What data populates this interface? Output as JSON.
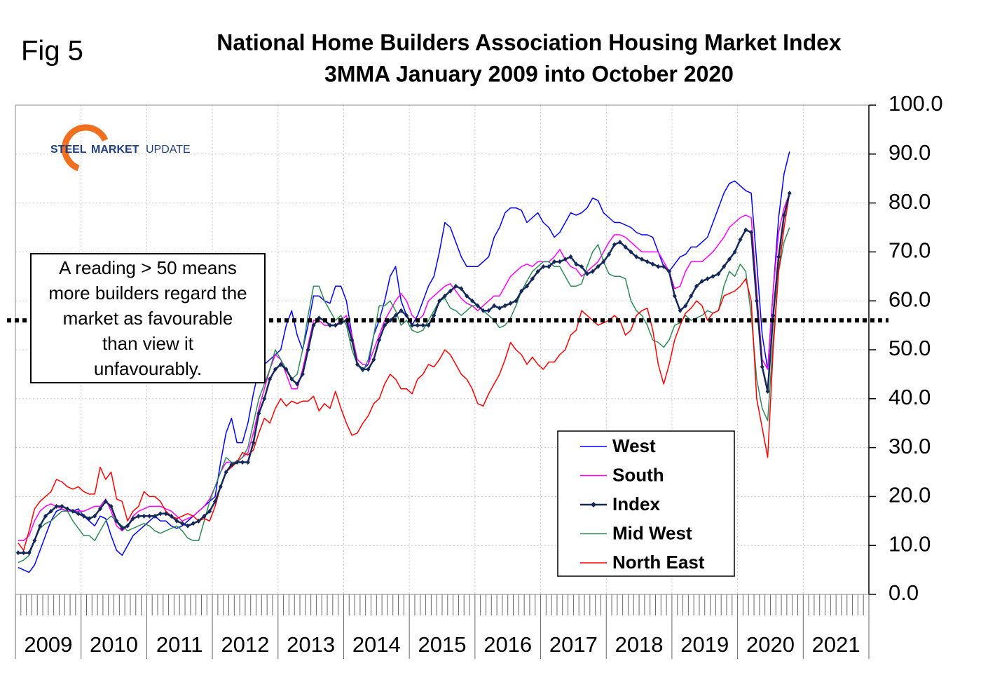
{
  "chart_data": {
    "type": "line",
    "figure_label": "Fig 5",
    "title": [
      "National Home Builders Association Housing Market Index",
      "3MMA January 2009 into October 2020"
    ],
    "logo": [
      "STEEL",
      "MARKET",
      "UPDATE"
    ],
    "annotation": [
      "A reading > 50 means",
      "more builders regard the",
      "market as favourable",
      "than view it",
      "unfavourably."
    ],
    "reference_line": 56,
    "x_year_labels": [
      "2009",
      "2010",
      "2011",
      "2012",
      "2013",
      "2014",
      "2015",
      "2016",
      "2017",
      "2018",
      "2019",
      "2020",
      "2021"
    ],
    "ylim": [
      0,
      100
    ],
    "yticks": [
      {
        "value": 0,
        "label": "0.0"
      },
      {
        "value": 10,
        "label": "10.0"
      },
      {
        "value": 20,
        "label": "20.0"
      },
      {
        "value": 30,
        "label": "30.0"
      },
      {
        "value": 40,
        "label": "40.0"
      },
      {
        "value": 50,
        "label": "50.0"
      },
      {
        "value": 60,
        "label": "60.0"
      },
      {
        "value": 70,
        "label": "70.0"
      },
      {
        "value": 80,
        "label": "80.0"
      },
      {
        "value": 90,
        "label": "90.0"
      },
      {
        "value": 100,
        "label": "100.0"
      }
    ],
    "grid": true,
    "legend": "bottom-right",
    "series": [
      {
        "name": "West",
        "color": "#0000ff",
        "markers": false,
        "values": [
          5.5,
          5,
          4.5,
          6,
          9,
          12,
          15,
          17,
          17.5,
          17,
          17,
          17.5,
          16,
          15,
          14,
          16,
          15.5,
          12,
          9,
          8,
          10,
          12,
          13,
          14,
          15,
          16,
          15,
          15,
          14,
          13.5,
          14,
          15,
          16,
          17,
          18,
          19,
          20,
          27,
          33,
          36,
          31,
          31,
          35,
          41,
          46,
          47,
          48,
          49,
          50,
          55,
          58,
          53,
          50,
          55,
          61,
          61,
          60,
          59.5,
          63,
          63,
          60,
          53,
          47,
          46,
          47,
          53,
          56,
          60,
          65,
          67,
          60,
          57,
          55,
          57,
          60,
          63,
          65,
          70,
          76,
          75,
          72,
          69,
          67,
          67,
          67,
          68,
          69,
          73,
          75,
          78,
          79,
          79,
          78.5,
          76,
          77,
          78,
          76,
          75,
          73,
          74,
          76,
          78,
          77.5,
          78,
          79,
          81,
          80.5,
          78,
          77,
          76,
          76,
          75.5,
          75,
          74,
          73.5,
          73.5,
          73,
          70,
          67,
          66,
          67.5,
          69,
          69.5,
          71,
          71,
          72,
          73,
          76,
          79,
          82,
          84,
          84.5,
          83.5,
          82.5,
          82,
          68,
          53,
          46,
          62,
          77,
          86,
          90.5
        ]
      },
      {
        "name": "South",
        "color": "#ff00ff",
        "markers": false,
        "values": [
          11,
          11,
          12,
          15,
          17,
          18,
          18.5,
          18,
          17.5,
          17,
          17,
          17,
          17,
          17.5,
          18,
          18,
          19.5,
          17,
          14,
          13,
          14,
          16,
          17,
          17.5,
          18,
          18,
          18,
          17.5,
          17,
          16,
          15,
          15.5,
          16,
          17,
          18,
          19.5,
          22,
          25,
          27,
          27,
          27,
          28,
          29,
          33,
          38,
          42,
          46,
          49,
          48,
          45,
          42,
          42,
          46,
          51,
          56,
          56,
          55,
          55,
          55,
          56,
          57,
          53,
          48,
          47,
          47,
          50,
          53,
          56,
          58,
          60,
          61.5,
          60,
          57,
          56,
          57,
          60,
          61,
          62,
          63,
          63.5,
          62,
          60.5,
          59.5,
          59,
          58,
          59,
          60,
          61,
          61,
          63,
          65,
          66,
          67,
          67.5,
          67,
          68,
          68,
          68,
          69,
          70.5,
          68.5,
          67,
          66.5,
          65,
          66,
          67,
          68,
          70,
          72,
          73.5,
          73.5,
          73,
          72,
          71,
          70,
          70,
          70,
          70,
          68,
          66,
          62.5,
          63,
          66,
          68,
          68,
          68,
          69,
          70,
          71.5,
          73,
          75,
          76,
          77,
          77.5,
          77,
          62,
          48,
          46,
          62,
          74,
          79,
          82
        ]
      },
      {
        "name": "Index",
        "color": "#14285a",
        "markers": true,
        "values": [
          8.5,
          8.5,
          8.5,
          11,
          14,
          16,
          17,
          18,
          18,
          17.5,
          17,
          16.5,
          16,
          15.5,
          16,
          17.5,
          19,
          18,
          15,
          13.5,
          14,
          15.5,
          16,
          16,
          16,
          16,
          16.5,
          16.5,
          16,
          15,
          14.5,
          14,
          14.5,
          15,
          16,
          17,
          19,
          22,
          25,
          26.5,
          27,
          27,
          27,
          31,
          37,
          40,
          44,
          46,
          47,
          46,
          44,
          43,
          45,
          50,
          55,
          56.5,
          56,
          55,
          55,
          55.5,
          56,
          52,
          47,
          46,
          46,
          48,
          52,
          55,
          56,
          57,
          58,
          57,
          55,
          55,
          55,
          55,
          57,
          60,
          61,
          62,
          63,
          62.5,
          61,
          60,
          59,
          58,
          58,
          59,
          58.5,
          59,
          59.5,
          60,
          62,
          63,
          64.5,
          66,
          67,
          67,
          68,
          68,
          68.5,
          69,
          67.5,
          67,
          65.5,
          66,
          67,
          68,
          69.5,
          71.5,
          72,
          71,
          70,
          69,
          68.5,
          68,
          67.5,
          67,
          67,
          66,
          61,
          58,
          59,
          61,
          63,
          64,
          64.5,
          65,
          65.5,
          67,
          68.5,
          70,
          72.5,
          74.5,
          74,
          60,
          46.5,
          41.5,
          57,
          69,
          77.5,
          82
        ]
      },
      {
        "name": "Mid West",
        "color": "#2e8b57",
        "markers": false,
        "values": [
          6.5,
          7,
          8,
          11,
          13.5,
          14.5,
          15,
          16,
          17,
          17,
          15,
          13.5,
          12,
          12,
          11,
          13,
          15,
          16,
          15,
          14,
          13,
          13.5,
          14,
          14.5,
          14,
          13,
          12.5,
          13,
          13.5,
          14,
          13,
          11.5,
          11,
          11,
          15,
          19,
          22,
          25,
          28,
          27,
          27,
          28,
          30,
          35,
          40,
          43,
          46,
          50,
          48,
          46,
          44,
          45,
          50,
          57,
          63,
          63,
          60,
          58,
          56,
          57,
          55,
          50,
          47,
          45.5,
          48,
          53,
          59,
          59,
          60,
          58,
          55,
          56,
          54,
          53.5,
          54,
          56,
          58,
          60,
          60.5,
          58.5,
          58,
          57,
          58,
          59,
          59,
          58,
          57,
          56,
          54.5,
          55,
          56.5,
          59,
          62,
          64,
          66,
          67,
          68,
          68,
          67,
          67,
          65,
          63,
          63,
          63.5,
          67,
          70,
          71.5,
          68,
          65.5,
          65,
          65,
          64.5,
          60,
          58,
          57,
          55,
          52,
          51.5,
          50.5,
          52,
          55,
          55.5,
          57,
          56,
          56.5,
          57,
          58,
          57.5,
          58,
          63,
          66,
          65,
          67.5,
          66,
          57,
          44,
          38,
          35.5,
          52,
          66,
          72,
          75
        ]
      },
      {
        "name": "North East",
        "color": "#ff0000",
        "markers": false,
        "values": [
          10.5,
          9,
          13,
          17.5,
          19,
          20,
          21,
          23.5,
          23,
          22,
          21.5,
          22,
          21,
          20.5,
          20.5,
          26,
          23.5,
          25,
          19.5,
          19,
          15,
          17,
          18,
          21,
          20,
          20,
          19,
          17,
          16,
          15.5,
          16,
          16.5,
          16,
          15,
          15.5,
          15,
          18,
          22,
          25,
          26,
          27,
          29,
          28.5,
          29.5,
          33,
          36,
          35,
          38,
          40,
          38.5,
          39.5,
          39,
          39.5,
          39.5,
          40.5,
          37.5,
          39,
          38,
          41.5,
          38,
          35,
          32.5,
          33,
          35,
          36.5,
          39,
          40,
          43,
          45,
          44,
          42,
          42,
          41,
          44,
          45,
          47,
          46.5,
          48,
          50,
          49,
          47,
          45,
          44,
          42,
          39,
          38.5,
          41,
          43,
          45,
          48,
          51.5,
          50,
          49,
          47,
          48.5,
          47,
          46,
          47.5,
          47.5,
          49,
          50,
          53,
          54,
          58,
          57,
          56,
          55,
          55.5,
          56,
          57,
          56,
          53,
          54,
          57,
          58,
          58.5,
          54,
          47,
          43,
          47,
          52,
          55,
          57.5,
          58.5,
          60,
          59,
          56,
          57.5,
          58,
          61,
          61.5,
          62,
          63,
          64.5,
          60,
          40,
          34,
          28,
          50,
          66,
          75,
          82
        ]
      }
    ]
  }
}
